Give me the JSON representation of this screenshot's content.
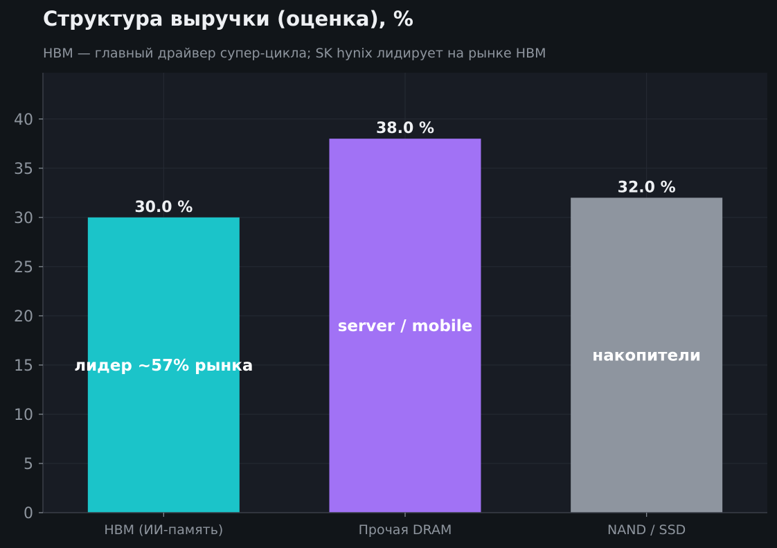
{
  "chart_data": {
    "type": "bar",
    "title": "Структура выручки (оценка), %",
    "subtitle": "HBM — главный драйвер супер-цикла; SK hynix лидирует на рынке HBM",
    "xlabel": "",
    "ylabel": "",
    "categories": [
      "HBM (ИИ-память)",
      "Прочая DRAM",
      "NAND / SSD"
    ],
    "values": [
      30.0,
      38.0,
      32.0
    ],
    "value_labels": [
      "30.0 %",
      "38.0 %",
      "32.0 %"
    ],
    "bar_annotations": [
      "лидер ~57% рынка",
      "server / mobile",
      "накопители"
    ],
    "colors": [
      "#1bc4c9",
      "#a172f5",
      "#8e959f"
    ],
    "ylim": [
      0,
      44.7
    ],
    "yticks": [
      0,
      5,
      10,
      15,
      20,
      25,
      30,
      35,
      40
    ],
    "grid": true,
    "legend": "none",
    "theme": {
      "background": "#111519",
      "plot_background": "#181c24",
      "grid_color": "#262b35",
      "text_color": "#eef0f3",
      "muted_text_color": "#8e959e"
    }
  }
}
